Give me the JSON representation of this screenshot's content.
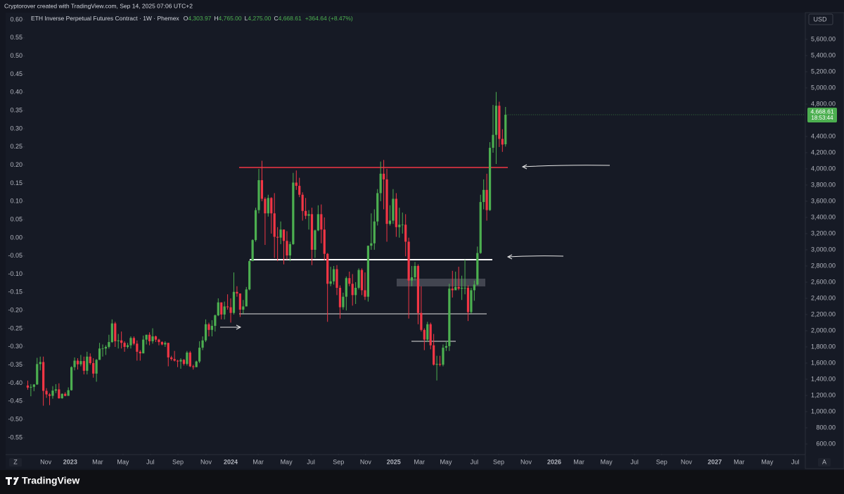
{
  "header": {
    "credit": "Cryptorover created with TradingView.com, Sep 14, 2025 07:06 UTC+2",
    "symbol": "ETH Inverse Perpetual Futures Contract · 1W · Phemex",
    "ohlc": [
      {
        "key": "O",
        "value": "4,303.97"
      },
      {
        "key": "H",
        "value": "4,765.00"
      },
      {
        "key": "L",
        "value": "4,275.00"
      },
      {
        "key": "C",
        "value": "4,668.61"
      }
    ],
    "change": "+364.64 (+8.47%)"
  },
  "chart_data": {
    "type": "candlestick",
    "up_color": "#4caf50",
    "down_color": "#f23645",
    "ohlc": [
      [
        1323,
        1384,
        1271,
        1297
      ],
      [
        1297,
        1340,
        1190,
        1306
      ],
      [
        1306,
        1340,
        1253,
        1336
      ],
      [
        1336,
        1665,
        1330,
        1588
      ],
      [
        1588,
        1680,
        1510,
        1613
      ],
      [
        1613,
        1680,
        1073,
        1257
      ],
      [
        1257,
        1290,
        1170,
        1213
      ],
      [
        1213,
        1230,
        1080,
        1195
      ],
      [
        1195,
        1315,
        1160,
        1260
      ],
      [
        1260,
        1340,
        1230,
        1275
      ],
      [
        1275,
        1350,
        1160,
        1165
      ],
      [
        1165,
        1225,
        1160,
        1220
      ],
      [
        1220,
        1240,
        1190,
        1195
      ],
      [
        1195,
        1300,
        1195,
        1265
      ],
      [
        1265,
        1560,
        1260,
        1550
      ],
      [
        1550,
        1670,
        1510,
        1630
      ],
      [
        1630,
        1660,
        1520,
        1585
      ],
      [
        1585,
        1700,
        1560,
        1625
      ],
      [
        1625,
        1680,
        1460,
        1505
      ],
      [
        1505,
        1740,
        1460,
        1680
      ],
      [
        1680,
        1720,
        1580,
        1600
      ],
      [
        1600,
        1660,
        1420,
        1470
      ],
      [
        1470,
        1650,
        1370,
        1640
      ],
      [
        1640,
        1850,
        1640,
        1780
      ],
      [
        1780,
        1830,
        1680,
        1780
      ],
      [
        1780,
        1820,
        1700,
        1800
      ],
      [
        1800,
        1950,
        1780,
        1860
      ],
      [
        1860,
        2140,
        1850,
        2090
      ],
      [
        2090,
        2110,
        1800,
        1870
      ],
      [
        1870,
        1960,
        1780,
        1880
      ],
      [
        1880,
        1990,
        1780,
        1850
      ],
      [
        1850,
        1870,
        1740,
        1800
      ],
      [
        1800,
        1850,
        1780,
        1820
      ],
      [
        1820,
        1930,
        1780,
        1910
      ],
      [
        1910,
        1930,
        1820,
        1840
      ],
      [
        1840,
        1880,
        1630,
        1740
      ],
      [
        1740,
        1760,
        1630,
        1720
      ],
      [
        1720,
        1940,
        1720,
        1890
      ],
      [
        1890,
        1950,
        1830,
        1950
      ],
      [
        1950,
        1980,
        1820,
        1870
      ],
      [
        1870,
        2030,
        1840,
        1930
      ],
      [
        1930,
        1940,
        1860,
        1890
      ],
      [
        1890,
        1900,
        1820,
        1860
      ],
      [
        1860,
        1870,
        1820,
        1830
      ],
      [
        1830,
        1870,
        1800,
        1850
      ],
      [
        1850,
        1850,
        1560,
        1670
      ],
      [
        1670,
        1690,
        1630,
        1650
      ],
      [
        1650,
        1750,
        1620,
        1630
      ],
      [
        1630,
        1640,
        1550,
        1620
      ],
      [
        1620,
        1660,
        1530,
        1640
      ],
      [
        1640,
        1650,
        1570,
        1590
      ],
      [
        1590,
        1750,
        1570,
        1730
      ],
      [
        1730,
        1750,
        1550,
        1560
      ],
      [
        1560,
        1580,
        1520,
        1550
      ],
      [
        1550,
        1630,
        1550,
        1620
      ],
      [
        1620,
        1870,
        1600,
        1790
      ],
      [
        1790,
        1930,
        1760,
        1880
      ],
      [
        1880,
        2140,
        1860,
        2080
      ],
      [
        2080,
        2100,
        1930,
        2010
      ],
      [
        2010,
        2130,
        1930,
        2060
      ],
      [
        2060,
        2200,
        1990,
        2190
      ],
      [
        2190,
        2400,
        2180,
        2350
      ],
      [
        2350,
        2350,
        2140,
        2200
      ],
      [
        2200,
        2360,
        2140,
        2300
      ],
      [
        2300,
        2450,
        2260,
        2290
      ],
      [
        2290,
        2400,
        2100,
        2220
      ],
      [
        2220,
        2720,
        2200,
        2480
      ],
      [
        2480,
        2550,
        2420,
        2460
      ],
      [
        2460,
        2460,
        2170,
        2260
      ],
      [
        2260,
        2380,
        2210,
        2300
      ],
      [
        2300,
        2540,
        2300,
        2510
      ],
      [
        2510,
        2870,
        2500,
        2860
      ],
      [
        2860,
        3130,
        2860,
        3120
      ],
      [
        3120,
        3520,
        3100,
        3490
      ],
      [
        3490,
        4000,
        3450,
        3860
      ],
      [
        3860,
        4100,
        3600,
        3630
      ],
      [
        3630,
        3650,
        3060,
        3450
      ],
      [
        3450,
        3680,
        3410,
        3640
      ],
      [
        3640,
        3650,
        3200,
        3450
      ],
      [
        3450,
        3700,
        2900,
        3160
      ],
      [
        3160,
        3280,
        2860,
        3150
      ],
      [
        3150,
        3350,
        3070,
        3250
      ],
      [
        3250,
        3250,
        2820,
        3110
      ],
      [
        3110,
        3230,
        2880,
        2930
      ],
      [
        2930,
        3100,
        2860,
        3070
      ],
      [
        3070,
        3950,
        3060,
        3830
      ],
      [
        3830,
        3980,
        3740,
        3790
      ],
      [
        3790,
        3890,
        3650,
        3680
      ],
      [
        3680,
        3710,
        3360,
        3480
      ],
      [
        3480,
        3640,
        3380,
        3420
      ],
      [
        3420,
        3490,
        3250,
        3440
      ],
      [
        3440,
        3520,
        2810,
        3000
      ],
      [
        3000,
        3250,
        2900,
        3240
      ],
      [
        3240,
        3550,
        3230,
        3440
      ],
      [
        3440,
        3560,
        3080,
        3250
      ],
      [
        3250,
        3400,
        2870,
        2950
      ],
      [
        2950,
        2960,
        2110,
        2580
      ],
      [
        2580,
        2790,
        2550,
        2610
      ],
      [
        2610,
        2800,
        2570,
        2760
      ],
      [
        2760,
        2810,
        2440,
        2530
      ],
      [
        2530,
        2560,
        2150,
        2290
      ],
      [
        2290,
        2470,
        2260,
        2420
      ],
      [
        2420,
        2670,
        2250,
        2650
      ],
      [
        2650,
        2730,
        2550,
        2580
      ],
      [
        2580,
        2700,
        2310,
        2440
      ],
      [
        2440,
        2600,
        2330,
        2530
      ],
      [
        2530,
        2770,
        2510,
        2750
      ],
      [
        2750,
        2770,
        2440,
        2500
      ],
      [
        2500,
        2720,
        2380,
        2420
      ],
      [
        2420,
        3050,
        2360,
        3050
      ],
      [
        3050,
        3450,
        3000,
        3080
      ],
      [
        3080,
        3500,
        3000,
        3350
      ],
      [
        3350,
        3750,
        3300,
        3700
      ],
      [
        3700,
        4090,
        3600,
        3940
      ],
      [
        3940,
        4110,
        3500,
        3870
      ],
      [
        3870,
        4000,
        3100,
        3320
      ],
      [
        3320,
        3550,
        3300,
        3360
      ],
      [
        3360,
        3750,
        3320,
        3630
      ],
      [
        3630,
        3700,
        3160,
        3280
      ],
      [
        3280,
        3520,
        3150,
        3310
      ],
      [
        3310,
        3460,
        3200,
        3310
      ],
      [
        3310,
        3440,
        2920,
        3100
      ],
      [
        3100,
        3150,
        2150,
        2620
      ],
      [
        2620,
        2800,
        2550,
        2660
      ],
      [
        2660,
        2850,
        2620,
        2800
      ],
      [
        2800,
        2820,
        2080,
        2220
      ],
      [
        2220,
        2550,
        1990,
        2010
      ],
      [
        2010,
        2030,
        1760,
        1890
      ],
      [
        1890,
        2110,
        1860,
        2080
      ],
      [
        2080,
        2100,
        1770,
        1820
      ],
      [
        1820,
        1960,
        1570,
        1580
      ],
      [
        1580,
        1690,
        1385,
        1590
      ],
      [
        1590,
        1690,
        1560,
        1580
      ],
      [
        1580,
        1830,
        1560,
        1790
      ],
      [
        1790,
        1870,
        1750,
        1810
      ],
      [
        1810,
        2580,
        1750,
        2520
      ],
      [
        2520,
        2740,
        2410,
        2500
      ],
      [
        2500,
        2730,
        2500,
        2540
      ],
      [
        2540,
        2790,
        2500,
        2520
      ],
      [
        2520,
        2680,
        2380,
        2530
      ],
      [
        2530,
        2880,
        2450,
        2530
      ],
      [
        2530,
        2560,
        2120,
        2230
      ],
      [
        2230,
        2530,
        2210,
        2500
      ],
      [
        2500,
        2620,
        2370,
        2570
      ],
      [
        2570,
        3040,
        2560,
        2960
      ],
      [
        2960,
        3680,
        2950,
        3590
      ],
      [
        3590,
        3870,
        3500,
        3740
      ],
      [
        3740,
        3940,
        3360,
        3490
      ],
      [
        3490,
        4330,
        3480,
        4260
      ],
      [
        4260,
        4790,
        4200,
        4420
      ],
      [
        4420,
        4950,
        4060,
        4780
      ],
      [
        4780,
        4830,
        4270,
        4370
      ],
      [
        4370,
        4490,
        4210,
        4300
      ],
      [
        4303.97,
        4765,
        4275,
        4668.61
      ]
    ],
    "xlim": [
      -1,
      249
    ],
    "xticks": [
      {
        "value": 5.8,
        "label": "Nov"
      },
      {
        "value": 13.6,
        "label": "2023"
      },
      {
        "value": 22.4,
        "label": "Mar"
      },
      {
        "value": 30.5,
        "label": "May"
      },
      {
        "value": 39.3,
        "label": "Jul"
      },
      {
        "value": 48.1,
        "label": "Sep"
      },
      {
        "value": 57.1,
        "label": "Nov"
      },
      {
        "value": 65,
        "label": "2024"
      },
      {
        "value": 73.8,
        "label": "Mar"
      },
      {
        "value": 82.8,
        "label": "May"
      },
      {
        "value": 90.7,
        "label": "Jul"
      },
      {
        "value": 99.5,
        "label": "Sep"
      },
      {
        "value": 108.2,
        "label": "Nov"
      },
      {
        "value": 117.2,
        "label": "2025"
      },
      {
        "value": 125.4,
        "label": "Mar"
      },
      {
        "value": 133.9,
        "label": "May"
      },
      {
        "value": 143,
        "label": "Jul"
      },
      {
        "value": 150.8,
        "label": "Sep"
      },
      {
        "value": 159.6,
        "label": "Nov"
      },
      {
        "value": 168.6,
        "label": "2026"
      },
      {
        "value": 176.5,
        "label": "Mar"
      },
      {
        "value": 185.3,
        "label": "May"
      },
      {
        "value": 194.3,
        "label": "Jul"
      },
      {
        "value": 203,
        "label": "Sep"
      },
      {
        "value": 210.9,
        "label": "Nov"
      },
      {
        "value": 220,
        "label": "2027"
      },
      {
        "value": 227.8,
        "label": "Mar"
      },
      {
        "value": 236.8,
        "label": "May"
      },
      {
        "value": 245.8,
        "label": "Jul"
      }
    ],
    "ylim": [
      478,
      5956
    ],
    "yticks": [
      {
        "value": 600,
        "label": "600.00"
      },
      {
        "value": 800,
        "label": "800.00"
      },
      {
        "value": 1000,
        "label": "1,000.00"
      },
      {
        "value": 1200,
        "label": "1,200.00"
      },
      {
        "value": 1400,
        "label": "1,400.00"
      },
      {
        "value": 1600,
        "label": "1,600.00"
      },
      {
        "value": 1800,
        "label": "1,800.00"
      },
      {
        "value": 2000,
        "label": "2,000.00"
      },
      {
        "value": 2200,
        "label": "2,200.00"
      },
      {
        "value": 2400,
        "label": "2,400.00"
      },
      {
        "value": 2600,
        "label": "2,600.00"
      },
      {
        "value": 2800,
        "label": "2,800.00"
      },
      {
        "value": 3000,
        "label": "3,000.00"
      },
      {
        "value": 3200,
        "label": "3,200.00"
      },
      {
        "value": 3400,
        "label": "3,400.00"
      },
      {
        "value": 3600,
        "label": "3,600.00"
      },
      {
        "value": 3800,
        "label": "3,800.00"
      },
      {
        "value": 4000,
        "label": "4,000.00"
      },
      {
        "value": 4200,
        "label": "4,200.00"
      },
      {
        "value": 4400,
        "label": "4,400.00"
      },
      {
        "value": 4800,
        "label": "4,800.00"
      },
      {
        "value": 5000,
        "label": "5,000.00"
      },
      {
        "value": 5200,
        "label": "5,200.00"
      },
      {
        "value": 5400,
        "label": "5,400.00"
      },
      {
        "value": 5600,
        "label": "5,600.00"
      }
    ],
    "y2lim": [
      -0.5945,
      0.625
    ],
    "y2ticks": [
      {
        "value": 0.6,
        "label": "0.60"
      },
      {
        "value": 0.55,
        "label": "0.55"
      },
      {
        "value": 0.5,
        "label": "0.50"
      },
      {
        "value": 0.45,
        "label": "0.45"
      },
      {
        "value": 0.4,
        "label": "0.40"
      },
      {
        "value": 0.35,
        "label": "0.35"
      },
      {
        "value": 0.3,
        "label": "0.30"
      },
      {
        "value": 0.25,
        "label": "0.25"
      },
      {
        "value": 0.2,
        "label": "0.20"
      },
      {
        "value": 0.15,
        "label": "0.15"
      },
      {
        "value": 0.1,
        "label": "0.10"
      },
      {
        "value": 0.05,
        "label": "0.05"
      },
      {
        "value": 0,
        "label": "0.00"
      },
      {
        "value": -0.05,
        "label": "-0.05"
      },
      {
        "value": -0.1,
        "label": "-0.10"
      },
      {
        "value": -0.15,
        "label": "-0.15"
      },
      {
        "value": -0.2,
        "label": "-0.20"
      },
      {
        "value": -0.25,
        "label": "-0.25"
      },
      {
        "value": -0.3,
        "label": "-0.30"
      },
      {
        "value": -0.35,
        "label": "-0.35"
      },
      {
        "value": -0.4,
        "label": "-0.40"
      },
      {
        "value": -0.45,
        "label": "-0.45"
      },
      {
        "value": -0.5,
        "label": "-0.50"
      },
      {
        "value": -0.55,
        "label": "-0.55"
      }
    ],
    "unit": "USD",
    "last_price_label": "4,668.61",
    "countdown": "18:53:44"
  },
  "footer": {
    "brand": "TradingView",
    "left_button": "Z",
    "right_button": "A"
  }
}
